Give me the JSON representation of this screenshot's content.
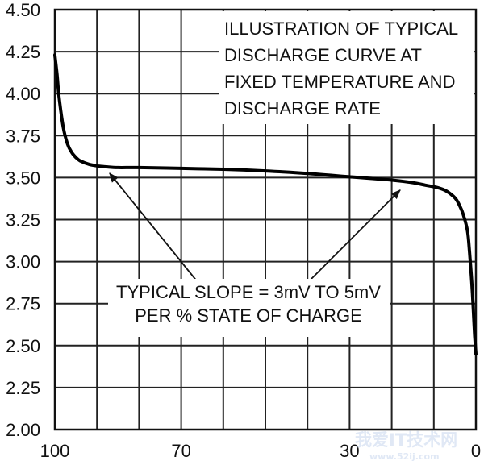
{
  "chart_data": {
    "type": "line",
    "title": "",
    "xlabel": "",
    "ylabel": "",
    "x_reversed": true,
    "xlim": [
      100,
      0
    ],
    "ylim": [
      2.0,
      4.5
    ],
    "y_ticks": [
      "2.00",
      "2.25",
      "2.50",
      "2.75",
      "3.00",
      "3.25",
      "3.50",
      "3.75",
      "4.00",
      "4.25",
      "4.50"
    ],
    "x_ticks": [
      {
        "value": 100,
        "label": "100"
      },
      {
        "value": 70,
        "label": "70"
      },
      {
        "value": 30,
        "label": "30"
      },
      {
        "value": 0,
        "label": "0"
      }
    ],
    "grid": true,
    "x_grid_step": 10,
    "series": [
      {
        "name": "discharge curve",
        "x": [
          100,
          99.5,
          99,
          98,
          97,
          96,
          95,
          94,
          92,
          90,
          88,
          85,
          80,
          70,
          60,
          50,
          40,
          30,
          20,
          15,
          12,
          9,
          7,
          5,
          4,
          3,
          2,
          1.5,
          1,
          0.6,
          0.3,
          0
        ],
        "y": [
          4.23,
          4.12,
          3.98,
          3.8,
          3.7,
          3.65,
          3.62,
          3.6,
          3.58,
          3.57,
          3.565,
          3.56,
          3.56,
          3.555,
          3.55,
          3.54,
          3.525,
          3.505,
          3.485,
          3.47,
          3.455,
          3.44,
          3.42,
          3.38,
          3.34,
          3.28,
          3.18,
          3.05,
          2.88,
          2.7,
          2.56,
          2.45
        ]
      }
    ],
    "annotations": [
      {
        "lines": [
          "ILLUSTRATION OF TYPICAL",
          "DISCHARGE CURVE AT",
          "FIXED TEMPERATURE AND",
          "DISCHARGE RATE"
        ],
        "placement": "top-right"
      },
      {
        "lines": [
          "TYPICAL SLOPE = 3mV TO 5mV",
          "PER % STATE OF CHARGE"
        ],
        "placement": "bottom-center",
        "arrow_targets": [
          {
            "x": 87,
            "y": 3.55
          },
          {
            "x": 18,
            "y": 3.45
          }
        ]
      }
    ]
  },
  "watermark": {
    "text": "我爱IT技术网",
    "sub": "www.52ij.com"
  }
}
